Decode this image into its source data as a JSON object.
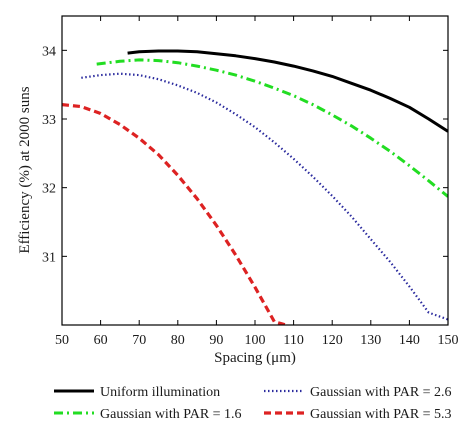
{
  "chart_data": {
    "type": "line",
    "xlabel": "Spacing (μm)",
    "ylabel": "Efficiency (%) at 2000 suns",
    "xlim": [
      50,
      150
    ],
    "ylim": [
      30.0,
      34.5
    ],
    "xticks": [
      50,
      60,
      70,
      80,
      90,
      100,
      110,
      120,
      130,
      140,
      150
    ],
    "yticks": [
      31,
      32,
      33,
      34
    ],
    "grid": false,
    "legend_position": "bottom",
    "series": [
      {
        "name": "Uniform illumination",
        "color": "#000000",
        "style": "solid",
        "x": [
          67,
          70,
          75,
          80,
          85,
          90,
          95,
          100,
          105,
          110,
          115,
          120,
          125,
          130,
          135,
          140,
          145,
          150
        ],
        "y": [
          33.96,
          33.98,
          33.99,
          33.99,
          33.98,
          33.95,
          33.92,
          33.88,
          33.83,
          33.77,
          33.7,
          33.62,
          33.52,
          33.42,
          33.3,
          33.17,
          33.0,
          32.82
        ]
      },
      {
        "name": "Gaussian with PAR = 1.6",
        "color": "#22dd22",
        "style": "dashdot",
        "x": [
          59,
          65,
          70,
          75,
          80,
          85,
          90,
          95,
          100,
          105,
          110,
          115,
          120,
          125,
          130,
          135,
          140,
          145,
          150
        ],
        "y": [
          33.8,
          33.84,
          33.86,
          33.85,
          33.82,
          33.77,
          33.71,
          33.64,
          33.55,
          33.45,
          33.34,
          33.21,
          33.06,
          32.9,
          32.72,
          32.53,
          32.32,
          32.1,
          31.87
        ]
      },
      {
        "name": "Gaussian with PAR = 2.6",
        "color": "#2b2b9e",
        "style": "dotted",
        "x": [
          55,
          60,
          65,
          70,
          75,
          80,
          85,
          90,
          95,
          100,
          105,
          110,
          115,
          120,
          125,
          130,
          135,
          140,
          145,
          150
        ],
        "y": [
          33.6,
          33.64,
          33.66,
          33.64,
          33.58,
          33.49,
          33.38,
          33.24,
          33.07,
          32.88,
          32.66,
          32.42,
          32.16,
          31.88,
          31.58,
          31.25,
          30.92,
          30.56,
          30.18,
          30.08
        ]
      },
      {
        "name": "Gaussian with PAR = 5.3",
        "color": "#dd2222",
        "style": "dashed",
        "x": [
          50,
          55,
          60,
          65,
          70,
          75,
          80,
          85,
          90,
          95,
          100,
          105,
          108
        ],
        "y": [
          33.21,
          33.18,
          33.08,
          32.92,
          32.72,
          32.48,
          32.18,
          31.84,
          31.45,
          31.02,
          30.55,
          30.05,
          30.0
        ]
      }
    ]
  }
}
